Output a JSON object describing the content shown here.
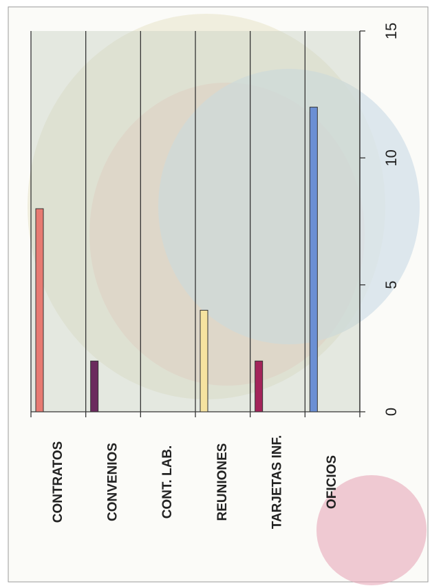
{
  "chart_data": {
    "type": "bar",
    "categories": [
      "CONTRATOS",
      "CONVENIOS",
      "CONT. LAB.",
      "REUNIONES",
      "TARJETAS INF.",
      "OFICIOS"
    ],
    "values": [
      8,
      2,
      0,
      4,
      2,
      12
    ],
    "colors": [
      "#e77a72",
      "#6b2a5e",
      "#888888",
      "#f6e3a0",
      "#a3245a",
      "#6b8fd4"
    ],
    "ylim": [
      0,
      15
    ],
    "yticks": [
      0,
      5,
      10,
      15
    ]
  }
}
